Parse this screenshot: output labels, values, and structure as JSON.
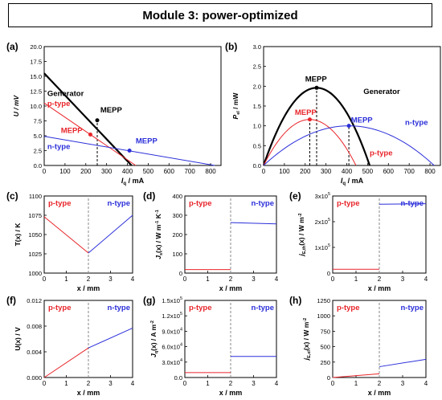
{
  "figure_title": "Module 3: power-optimized",
  "colors": {
    "black": "#000000",
    "red": "#e8252a",
    "blue": "#2b2fd9",
    "grid": "#888888"
  },
  "chart_data": [
    {
      "panel": "(a)",
      "type": "line",
      "xlabel": "I",
      "xlabel_sub": "q",
      "xlabel_unit": " / mA",
      "ylabel": "U / mV",
      "xlim": [
        0,
        850
      ],
      "ylim": [
        0,
        20
      ],
      "xticks": [
        0,
        100,
        200,
        300,
        400,
        500,
        600,
        700,
        800
      ],
      "yticks": [
        0,
        2.5,
        5,
        7.5,
        10,
        12.5,
        15,
        17.5,
        20
      ],
      "ytick_labels": [
        "0.0",
        "2.5",
        "5.0",
        "7.5",
        "10.0",
        "12.5",
        "15.0",
        "17.5",
        "20.0"
      ],
      "series": [
        {
          "name": "Generator",
          "color": "#000000",
          "width": 2.2,
          "x": [
            0,
            420
          ],
          "y": [
            15.5,
            0
          ]
        },
        {
          "name": "p-type",
          "color": "#e8252a",
          "width": 1,
          "x": [
            0,
            440
          ],
          "y": [
            10.5,
            0
          ]
        },
        {
          "name": "n-type",
          "color": "#2b2fd9",
          "width": 1,
          "x": [
            0,
            820
          ],
          "y": [
            4.9,
            0
          ]
        }
      ],
      "dashed": [
        {
          "x": 255,
          "y0": 0,
          "y1": 7.6
        }
      ],
      "points": [
        {
          "x": 255,
          "y": 7.6,
          "color": "#000000"
        },
        {
          "x": 222,
          "y": 5.2,
          "color": "#e8252a"
        },
        {
          "x": 410,
          "y": 2.5,
          "color": "#2b2fd9"
        }
      ],
      "labels": [
        {
          "text": "Generator",
          "x": 15,
          "y": 11.7,
          "color": "#000000"
        },
        {
          "text": "p-type",
          "x": 15,
          "y": 10.0,
          "color": "#e8252a"
        },
        {
          "text": "MEPP",
          "x": 270,
          "y": 8.9,
          "color": "#000000"
        },
        {
          "text": "MEPP",
          "x": 80,
          "y": 5.5,
          "color": "#e8252a"
        },
        {
          "text": "MEPP",
          "x": 440,
          "y": 3.7,
          "color": "#2b2fd9"
        },
        {
          "text": "n-type",
          "x": 15,
          "y": 2.8,
          "color": "#2b2fd9"
        }
      ]
    },
    {
      "panel": "(b)",
      "type": "line",
      "xlabel": "I",
      "xlabel_sub": "q",
      "xlabel_unit": " / mA",
      "ylabel": "P",
      "ylabel_sub": "el",
      "ylabel_unit": " / mW",
      "xlim": [
        0,
        850
      ],
      "ylim": [
        0,
        3.0
      ],
      "xticks": [
        0,
        100,
        200,
        300,
        400,
        500,
        600,
        700,
        800
      ],
      "yticks": [
        0,
        0.5,
        1.0,
        1.5,
        2.0,
        2.5,
        3.0
      ],
      "ytick_labels": [
        "0.0",
        "0.5",
        "1.0",
        "1.5",
        "2.0",
        "2.5",
        "3.0"
      ],
      "series": [
        {
          "name": "Generator",
          "color": "#000000",
          "width": 2.2,
          "peak_x": 255,
          "peak_y": 1.96,
          "x0": 0,
          "x1": 510
        },
        {
          "name": "p-type",
          "color": "#e8252a",
          "width": 1,
          "peak_x": 222,
          "peak_y": 1.16,
          "x0": 0,
          "x1": 444
        },
        {
          "name": "n-type",
          "color": "#2b2fd9",
          "width": 1,
          "peak_x": 410,
          "peak_y": 1.0,
          "x0": 0,
          "x1": 820
        }
      ],
      "dashed": [
        {
          "x": 255,
          "y0": 0,
          "y1": 1.96
        },
        {
          "x": 222,
          "y0": 0,
          "y1": 1.16
        },
        {
          "x": 410,
          "y0": 0,
          "y1": 1.0
        }
      ],
      "points": [
        {
          "x": 255,
          "y": 1.96,
          "color": "#000000"
        },
        {
          "x": 222,
          "y": 1.16,
          "color": "#e8252a"
        },
        {
          "x": 410,
          "y": 1.0,
          "color": "#2b2fd9"
        }
      ],
      "labels": [
        {
          "text": "MEPP",
          "x": 200,
          "y": 2.12,
          "color": "#000000"
        },
        {
          "text": "Generator",
          "x": 480,
          "y": 1.8,
          "color": "#000000"
        },
        {
          "text": "MEPP",
          "x": 150,
          "y": 1.28,
          "color": "#e8252a"
        },
        {
          "text": "MEPP",
          "x": 420,
          "y": 1.08,
          "color": "#2b2fd9"
        },
        {
          "text": "n-type",
          "x": 680,
          "y": 1.02,
          "color": "#2b2fd9"
        },
        {
          "text": "p-type",
          "x": 510,
          "y": 0.25,
          "color": "#e8252a"
        }
      ]
    },
    {
      "panel": "(c)",
      "type": "line",
      "xlabel": "x / mm",
      "ylabel": "T(x) / K",
      "xlim": [
        0,
        4
      ],
      "ylim": [
        1000,
        1100
      ],
      "xticks": [
        0,
        1,
        2,
        3,
        4
      ],
      "yticks": [
        1000,
        1025,
        1050,
        1075,
        1100
      ],
      "ytick_labels": [
        "1000",
        "1025",
        "1050",
        "1075",
        "1100"
      ],
      "series": [
        {
          "name": "p-type",
          "color": "#e8252a",
          "width": 1,
          "x": [
            0,
            2
          ],
          "y": [
            1073,
            1026
          ]
        },
        {
          "name": "n-type",
          "color": "#2b2fd9",
          "width": 1,
          "x": [
            2,
            4
          ],
          "y": [
            1026,
            1075
          ]
        }
      ],
      "dashed": [
        {
          "x": 2
        }
      ],
      "headers": [
        {
          "text": "p-type",
          "color": "#e8252a"
        },
        {
          "text": "n-type",
          "color": "#2b2fd9"
        }
      ]
    },
    {
      "panel": "(d)",
      "type": "line",
      "xlabel": "x / mm",
      "ylabel": "J",
      "ylabel_sub": "s",
      "ylabel_unit": "(x) / W m",
      "ylabel_sup": "-1",
      "ylabel_tail": " K",
      "ylabel_sup2": "-1",
      "xlim": [
        0,
        4
      ],
      "ylim": [
        0,
        400
      ],
      "xticks": [
        0,
        1,
        2,
        3,
        4
      ],
      "yticks": [
        0,
        100,
        200,
        300,
        400
      ],
      "ytick_labels": [
        "0",
        "100",
        "200",
        "300",
        "400"
      ],
      "series": [
        {
          "name": "p-type",
          "color": "#e8252a",
          "width": 1,
          "x": [
            0,
            2
          ],
          "y": [
            18,
            18
          ]
        },
        {
          "name": "n-type",
          "color": "#2b2fd9",
          "width": 1,
          "x": [
            2,
            4
          ],
          "y": [
            262,
            255
          ]
        }
      ],
      "dashed": [
        {
          "x": 2
        }
      ],
      "headers": [
        {
          "text": "p-type",
          "color": "#e8252a"
        },
        {
          "text": "n-type",
          "color": "#2b2fd9"
        }
      ]
    },
    {
      "panel": "(e)",
      "type": "line",
      "xlabel": "x / mm",
      "ylabel": "j",
      "ylabel_sub": "E,th",
      "ylabel_unit": "(x) / W m",
      "ylabel_sup": "-2",
      "xlim": [
        0,
        4
      ],
      "ylim": [
        0,
        300000
      ],
      "xticks": [
        0,
        1,
        2,
        3,
        4
      ],
      "yticks": [
        0,
        100000,
        200000,
        300000
      ],
      "ytick_labels": [
        "0",
        "1x10",
        "2x10",
        "3x10"
      ],
      "ytick_exp": [
        "",
        "5",
        "5",
        "5"
      ],
      "series": [
        {
          "name": "p-type",
          "color": "#e8252a",
          "width": 1,
          "x": [
            0,
            2
          ],
          "y": [
            15000,
            15000
          ]
        },
        {
          "name": "n-type",
          "color": "#2b2fd9",
          "width": 1,
          "x": [
            2,
            4
          ],
          "y": [
            268000,
            270000
          ]
        }
      ],
      "dashed": [
        {
          "x": 2
        }
      ],
      "headers": [
        {
          "text": "p-type",
          "color": "#e8252a"
        },
        {
          "text": "n-type",
          "color": "#2b2fd9"
        }
      ]
    },
    {
      "panel": "(f)",
      "type": "line",
      "xlabel": "x / mm",
      "ylabel": "U(x) / V",
      "xlim": [
        0,
        4
      ],
      "ylim": [
        0,
        0.012
      ],
      "xticks": [
        0,
        1,
        2,
        3,
        4
      ],
      "yticks": [
        0,
        0.004,
        0.008,
        0.012
      ],
      "ytick_labels": [
        "0.000",
        "0.004",
        "0.008",
        "0.012"
      ],
      "series": [
        {
          "name": "p-type",
          "color": "#e8252a",
          "width": 1,
          "x": [
            0,
            2
          ],
          "y": [
            0,
            0.0046
          ]
        },
        {
          "name": "n-type",
          "color": "#2b2fd9",
          "width": 1,
          "x": [
            2,
            4
          ],
          "y": [
            0.0046,
            0.0077
          ]
        }
      ],
      "dashed": [
        {
          "x": 2
        }
      ],
      "headers": [
        {
          "text": "p-type",
          "color": "#e8252a"
        },
        {
          "text": "n-type",
          "color": "#2b2fd9"
        }
      ]
    },
    {
      "panel": "(g)",
      "type": "line",
      "xlabel": "x / mm",
      "ylabel": "J",
      "ylabel_sub": "q",
      "ylabel_unit": "(x) / A m",
      "ylabel_sup": "-2",
      "xlim": [
        0,
        4
      ],
      "ylim": [
        0,
        150000
      ],
      "xticks": [
        0,
        1,
        2,
        3,
        4
      ],
      "yticks": [
        0,
        30000,
        60000,
        90000,
        120000,
        150000
      ],
      "ytick_labels": [
        "0.0",
        "3.0x10",
        "6.0x10",
        "9.0x10",
        "1.2x10",
        "1.5x10"
      ],
      "ytick_exp": [
        "",
        "4",
        "4",
        "4",
        "5",
        "5"
      ],
      "series": [
        {
          "name": "p-type",
          "color": "#e8252a",
          "width": 1,
          "x": [
            0,
            2
          ],
          "y": [
            9500,
            9500
          ]
        },
        {
          "name": "n-type",
          "color": "#2b2fd9",
          "width": 1,
          "x": [
            2,
            4
          ],
          "y": [
            41000,
            41000
          ]
        }
      ],
      "dashed": [
        {
          "x": 2
        }
      ],
      "headers": [
        {
          "text": "p-type",
          "color": "#e8252a"
        },
        {
          "text": "n-type",
          "color": "#2b2fd9"
        }
      ]
    },
    {
      "panel": "(h)",
      "type": "line",
      "xlabel": "x / mm",
      "ylabel": "j",
      "ylabel_sub": "E,el",
      "ylabel_unit": "(x) / W m",
      "ylabel_sup": "-2",
      "xlim": [
        0,
        4
      ],
      "ylim": [
        0,
        1250
      ],
      "xticks": [
        0,
        1,
        2,
        3,
        4
      ],
      "yticks": [
        0,
        250,
        500,
        750,
        1000,
        1250
      ],
      "ytick_labels": [
        "0",
        "250",
        "500",
        "750",
        "1000",
        "1250"
      ],
      "series": [
        {
          "name": "p-type",
          "color": "#e8252a",
          "width": 1,
          "x": [
            0,
            2
          ],
          "y": [
            0,
            60
          ]
        },
        {
          "name": "n-type",
          "color": "#2b2fd9",
          "width": 1,
          "x": [
            2,
            4
          ],
          "y": [
            175,
            295
          ]
        }
      ],
      "dashed": [
        {
          "x": 2
        }
      ],
      "headers": [
        {
          "text": "p-type",
          "color": "#e8252a"
        },
        {
          "text": "n-type",
          "color": "#2b2fd9"
        }
      ]
    }
  ]
}
